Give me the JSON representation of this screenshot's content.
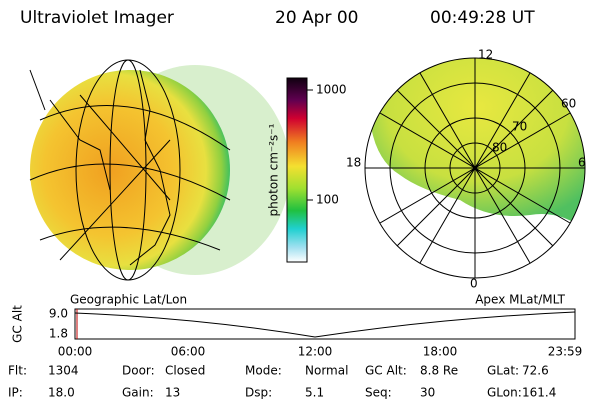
{
  "header": {
    "title": "Ultraviolet Imager",
    "date": "20 Apr 00",
    "time": "00:49:28 UT"
  },
  "colorbar": {
    "label": "photon cm⁻²s⁻¹",
    "ticks": [
      "1000",
      "100"
    ]
  },
  "polar": {
    "mlt": [
      "12",
      "18",
      "6",
      "0"
    ],
    "mlat": [
      "60",
      "70",
      "80"
    ]
  },
  "plot": {
    "left_label": "Geographic Lat/Lon",
    "right_label": "Apex MLat/MLT",
    "y_label": "GC Alt",
    "yticks": [
      "9.0",
      "1.8"
    ],
    "xticks": [
      "00:00",
      "06:00",
      "12:00",
      "18:00",
      "23:59"
    ]
  },
  "info": [
    [
      {
        "label": "Flt:",
        "value": "1304"
      },
      {
        "label": "Door:",
        "value": "Closed"
      },
      {
        "label": "Mode:",
        "value": "Normal"
      },
      {
        "label": "GC Alt:",
        "value": "8.8 Re"
      },
      {
        "label": "GLat:",
        "value": "72.6"
      }
    ],
    [
      {
        "label": "IP:",
        "value": "18.0"
      },
      {
        "label": "Gain:",
        "value": "13"
      },
      {
        "label": "Dsp:",
        "value": "5.1"
      },
      {
        "label": "Seq:",
        "value": "30"
      },
      {
        "label": "GLon:",
        "value": "161.4"
      }
    ]
  ]
}
